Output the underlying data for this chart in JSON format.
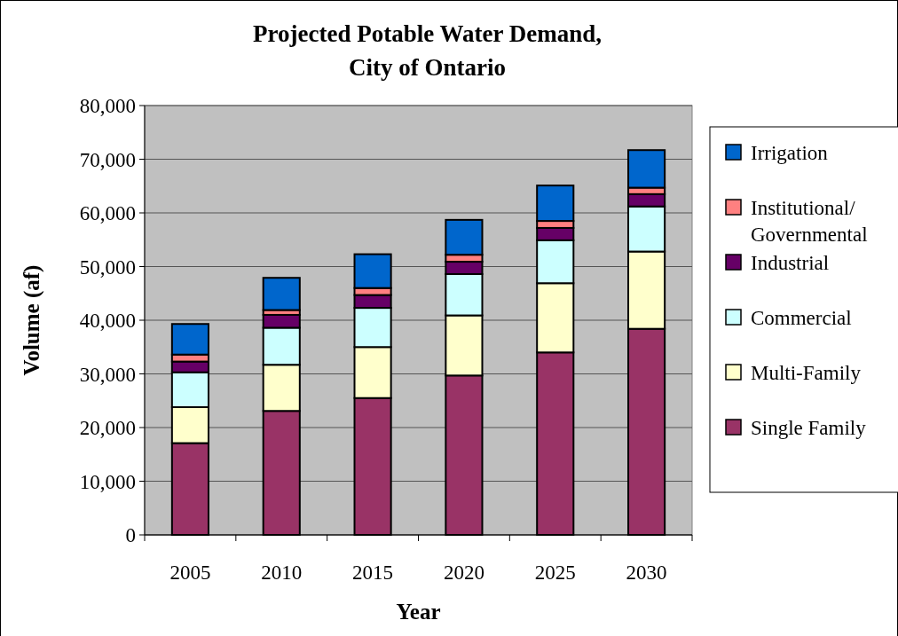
{
  "chart_data": {
    "type": "bar",
    "title": "Projected Potable Water Demand, City of Ontario",
    "xlabel": "Year",
    "ylabel": "Volume (af)",
    "categories": [
      "2005",
      "2010",
      "2015",
      "2020",
      "2025",
      "2030"
    ],
    "stacked": true,
    "series": [
      {
        "name": "Single Family",
        "color": "#993366",
        "values": [
          17100,
          23100,
          25500,
          29700,
          34000,
          38400
        ]
      },
      {
        "name": "Multi-Family",
        "color": "#ffffcc",
        "values": [
          6700,
          8600,
          9500,
          11200,
          12900,
          14400
        ]
      },
      {
        "name": "Commercial",
        "color": "#ccffff",
        "values": [
          6500,
          6900,
          7300,
          7700,
          8000,
          8400
        ]
      },
      {
        "name": "Industrial",
        "color": "#660066",
        "values": [
          2000,
          2400,
          2400,
          2300,
          2300,
          2300
        ]
      },
      {
        "name": "Institutional/Governmental",
        "color": "#ff8080",
        "values": [
          1300,
          900,
          1300,
          1300,
          1300,
          1200
        ]
      },
      {
        "name": "Irrigation",
        "color": "#0066cc",
        "values": [
          5700,
          6000,
          6300,
          6500,
          6600,
          7000
        ]
      }
    ],
    "ylim": [
      0,
      80000
    ],
    "yticks": [
      {
        "value": 0,
        "label": "0"
      },
      {
        "value": 10000,
        "label": "10,000"
      },
      {
        "value": 20000,
        "label": "20,000"
      },
      {
        "value": 30000,
        "label": "30,000"
      },
      {
        "value": 40000,
        "label": "40,000"
      },
      {
        "value": 50000,
        "label": "50,000"
      },
      {
        "value": 60000,
        "label": "60,000"
      },
      {
        "value": 70000,
        "label": "70,000"
      },
      {
        "value": 80000,
        "label": "80,000"
      }
    ],
    "grid": "y",
    "legend": "right"
  }
}
